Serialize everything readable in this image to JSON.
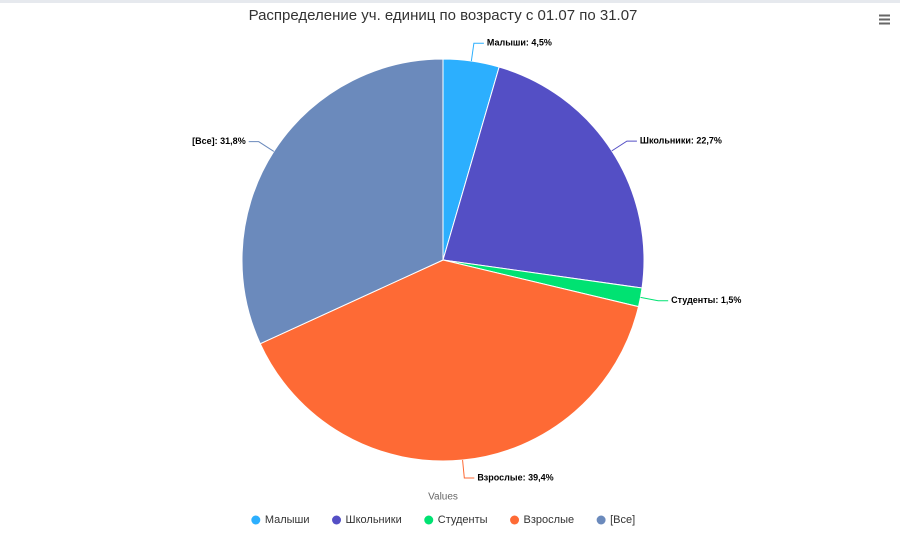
{
  "chart_data": {
    "type": "pie",
    "title": "Распределение уч. единиц по возрасту с 01.07 по 31.07",
    "categories": [
      "Малыши",
      "Школьники",
      "Студенты",
      "Взрослые",
      "[Все]"
    ],
    "values": [
      4.5,
      22.7,
      1.5,
      39.4,
      31.8
    ],
    "value_labels": [
      "Малыши: 4,5%",
      "Школьники: 22,7%",
      "Студенты: 1,5%",
      "Взрослые: 39,4%",
      "[Все]: 31,8%"
    ],
    "colors": [
      "#2caffe",
      "#544fc5",
      "#00e272",
      "#fe6a35",
      "#6b8abc"
    ],
    "legend_title": "Values",
    "legend": "bottom"
  }
}
